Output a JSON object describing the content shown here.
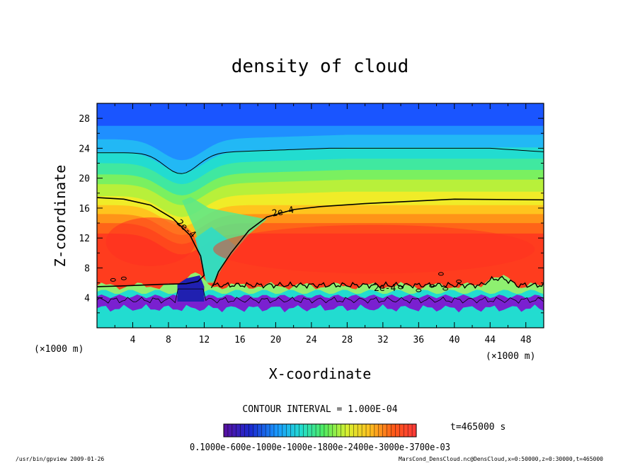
{
  "chart_data": {
    "type": "heatmap",
    "title": "density of cloud",
    "xlabel": "X-coordinate",
    "ylabel": "Z-coordinate",
    "x_scale_note": "(×1000 m)",
    "y_scale_note": "(×1000 m)",
    "xlim": [
      0,
      50
    ],
    "ylim": [
      0,
      30
    ],
    "x_ticks": [
      "4",
      "8",
      "12",
      "16",
      "20",
      "24",
      "28",
      "32",
      "36",
      "40",
      "44",
      "48"
    ],
    "y_ticks": [
      "4",
      "8",
      "12",
      "16",
      "20",
      "24",
      "28"
    ],
    "contour_interval_label": "CONTOUR INTERVAL = 1.000E-04",
    "contour_labels": [
      "2e-4",
      "2e-4",
      "2e-4"
    ],
    "time_label": "t=465000 s",
    "colorbar_labels": "0.1000e-600e-1000e-1000e-1800e-2400e-3000e-3700e-03",
    "footer_left": "/usr/bin/gpview   2009-01-26",
    "footer_right": "MarsCond_DensCloud.nc@DensCloud,x=0:50000,z=0:30000,t=465000",
    "bands": [
      {
        "z_top": 30,
        "value": 0.0,
        "color": "#1a55ff"
      },
      {
        "z_top": 27,
        "value": 0.05,
        "color": "#1f8fff"
      },
      {
        "z_top": 25.2,
        "value": 0.08,
        "color": "#22b8f5"
      },
      {
        "z_top": 23.5,
        "value": 0.1,
        "color": "#22dcd0"
      },
      {
        "z_top": 22,
        "value": 0.12,
        "color": "#40e8a0"
      },
      {
        "z_top": 20.5,
        "value": 0.15,
        "color": "#7af060"
      },
      {
        "z_top": 19.2,
        "value": 0.18,
        "color": "#b8f03a"
      },
      {
        "z_top": 17.6,
        "value": 0.2,
        "color": "#f0ec28"
      },
      {
        "z_top": 16.4,
        "value": 0.25,
        "color": "#ffc41e"
      },
      {
        "z_top": 15.2,
        "value": 0.28,
        "color": "#ff9418"
      },
      {
        "z_top": 14,
        "value": 0.32,
        "color": "#ff6418"
      },
      {
        "z_top": 12.6,
        "value": 0.36,
        "color": "#ff3c1e"
      }
    ],
    "colors": {
      "low_layer": "#22dcd0",
      "purple": "#7a20d0",
      "navy": "#2020b0",
      "cloud_core": "#ff3020"
    }
  }
}
